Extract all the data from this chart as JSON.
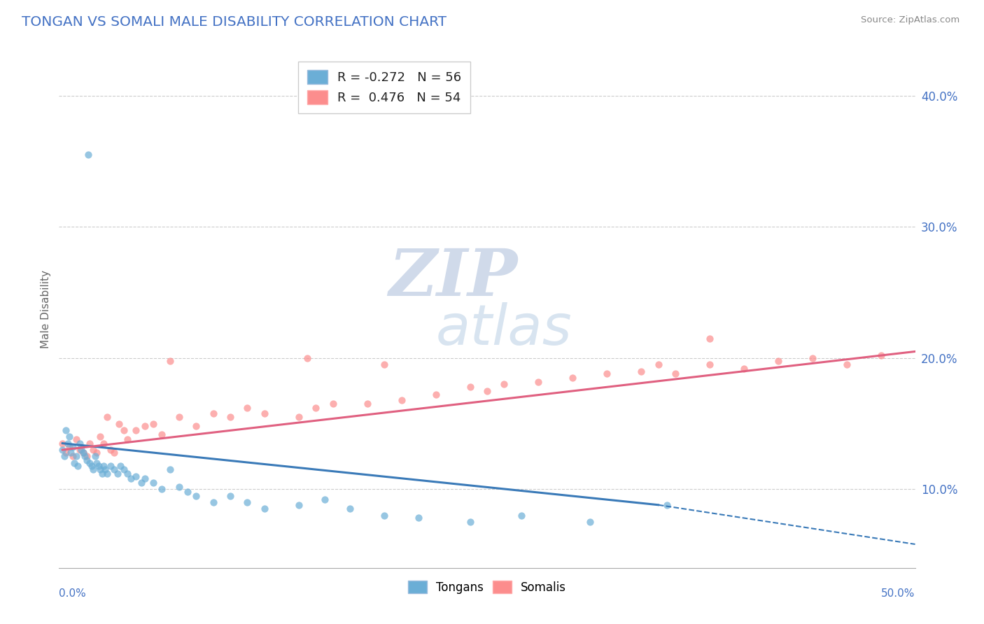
{
  "title": "TONGAN VS SOMALI MALE DISABILITY CORRELATION CHART",
  "source": "Source: ZipAtlas.com",
  "ylabel": "Male Disability",
  "ylabel_right_ticks": [
    "10.0%",
    "20.0%",
    "30.0%",
    "40.0%"
  ],
  "ylabel_right_vals": [
    0.1,
    0.2,
    0.3,
    0.4
  ],
  "tongan_color": "#6baed6",
  "somali_color": "#fc8d8d",
  "tongan_line_color": "#3a7ab8",
  "somali_line_color": "#e06080",
  "tongan_R": -0.272,
  "tongan_N": 56,
  "somali_R": 0.476,
  "somali_N": 54,
  "xmin": 0.0,
  "xmax": 0.5,
  "ymin": 0.04,
  "ymax": 0.435,
  "tongan_x": [
    0.002,
    0.003,
    0.004,
    0.005,
    0.006,
    0.007,
    0.008,
    0.009,
    0.01,
    0.011,
    0.012,
    0.013,
    0.014,
    0.015,
    0.016,
    0.017,
    0.018,
    0.019,
    0.02,
    0.021,
    0.022,
    0.023,
    0.024,
    0.025,
    0.026,
    0.027,
    0.028,
    0.03,
    0.032,
    0.034,
    0.036,
    0.038,
    0.04,
    0.042,
    0.045,
    0.048,
    0.05,
    0.055,
    0.06,
    0.065,
    0.07,
    0.075,
    0.08,
    0.09,
    0.1,
    0.11,
    0.12,
    0.14,
    0.155,
    0.17,
    0.19,
    0.21,
    0.24,
    0.27,
    0.31,
    0.355
  ],
  "tongan_y": [
    0.13,
    0.125,
    0.145,
    0.135,
    0.14,
    0.128,
    0.132,
    0.12,
    0.125,
    0.118,
    0.135,
    0.13,
    0.128,
    0.125,
    0.122,
    0.355,
    0.12,
    0.118,
    0.115,
    0.125,
    0.12,
    0.118,
    0.115,
    0.112,
    0.118,
    0.115,
    0.112,
    0.118,
    0.115,
    0.112,
    0.118,
    0.115,
    0.112,
    0.108,
    0.11,
    0.105,
    0.108,
    0.105,
    0.1,
    0.115,
    0.102,
    0.098,
    0.095,
    0.09,
    0.095,
    0.09,
    0.085,
    0.088,
    0.092,
    0.085,
    0.08,
    0.078,
    0.075,
    0.08,
    0.075,
    0.088
  ],
  "somali_x": [
    0.002,
    0.004,
    0.006,
    0.008,
    0.01,
    0.012,
    0.014,
    0.016,
    0.018,
    0.02,
    0.022,
    0.024,
    0.026,
    0.028,
    0.03,
    0.032,
    0.035,
    0.038,
    0.04,
    0.045,
    0.05,
    0.055,
    0.06,
    0.07,
    0.08,
    0.09,
    0.1,
    0.11,
    0.12,
    0.14,
    0.15,
    0.16,
    0.18,
    0.2,
    0.22,
    0.24,
    0.25,
    0.26,
    0.28,
    0.3,
    0.32,
    0.34,
    0.35,
    0.36,
    0.38,
    0.4,
    0.42,
    0.44,
    0.46,
    0.48,
    0.38,
    0.19,
    0.145,
    0.065
  ],
  "somali_y": [
    0.135,
    0.128,
    0.132,
    0.125,
    0.138,
    0.13,
    0.128,
    0.125,
    0.135,
    0.13,
    0.128,
    0.14,
    0.135,
    0.155,
    0.13,
    0.128,
    0.15,
    0.145,
    0.138,
    0.145,
    0.148,
    0.15,
    0.142,
    0.155,
    0.148,
    0.158,
    0.155,
    0.162,
    0.158,
    0.155,
    0.162,
    0.165,
    0.165,
    0.168,
    0.172,
    0.178,
    0.175,
    0.18,
    0.182,
    0.185,
    0.188,
    0.19,
    0.195,
    0.188,
    0.195,
    0.192,
    0.198,
    0.2,
    0.195,
    0.202,
    0.215,
    0.195,
    0.2,
    0.198
  ],
  "watermark_top": "ZIP",
  "watermark_bottom": "atlas",
  "legend_label_1": "R = -0.272   N = 56",
  "legend_label_2": "R =  0.476   N = 54"
}
